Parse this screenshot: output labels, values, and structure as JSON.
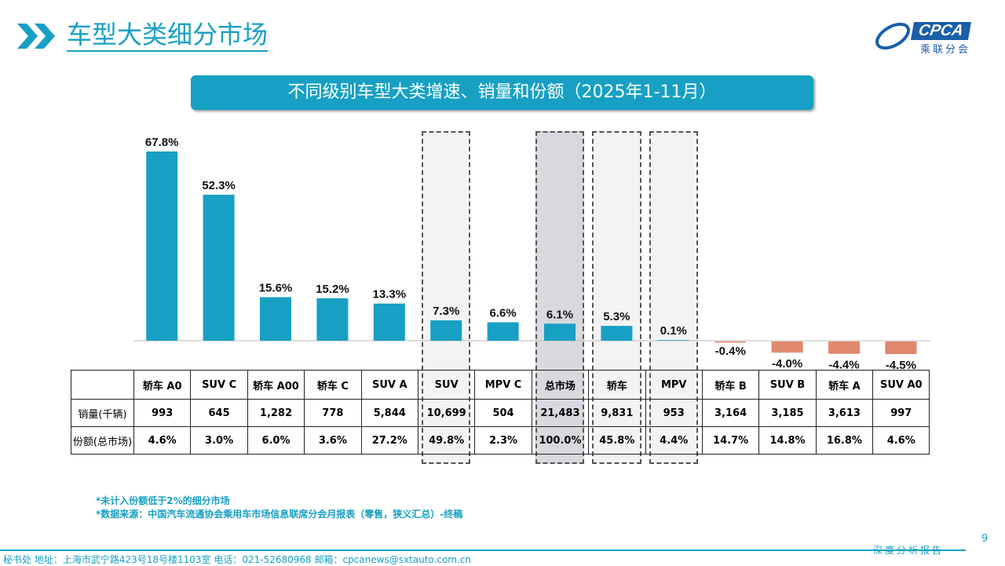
{
  "header": {
    "title": "车型大类细分市场",
    "logo_text": "CPCA",
    "logo_cn": "乘联分会"
  },
  "chart_data": {
    "type": "bar",
    "title": "不同级别车型大类增速、销量和份额（2025年1-11月）",
    "categories": [
      "轿车 A0",
      "SUV C",
      "轿车 A00",
      "轿车 C",
      "SUV A",
      "SUV",
      "MPV C",
      "总市场",
      "轿车",
      "MPV",
      "轿车 B",
      "SUV B",
      "轿车 A",
      "SUV A0"
    ],
    "values": [
      67.8,
      52.3,
      15.6,
      15.2,
      13.3,
      7.3,
      6.6,
      6.1,
      5.3,
      0.1,
      -0.4,
      -4.0,
      -4.4,
      -4.5
    ],
    "labels": [
      "67.8%",
      "52.3%",
      "15.6%",
      "15.2%",
      "13.3%",
      "7.3%",
      "6.6%",
      "6.1%",
      "5.3%",
      "0.1%",
      "-0.4%",
      "-4.0%",
      "-4.4%",
      "-4.5%"
    ],
    "unit": "%",
    "positive_color": "#17a0c4",
    "negative_color": "#e0886c",
    "highlighted": [
      "SUV",
      "总市场",
      "轿车",
      "MPV"
    ],
    "table": {
      "row_labels": [
        "销量(千辆)",
        "份额(总市场)"
      ],
      "sales": [
        "993",
        "645",
        "1,282",
        "778",
        "5,844",
        "10,699",
        "504",
        "21,483",
        "9,831",
        "953",
        "3,164",
        "3,185",
        "3,613",
        "997"
      ],
      "share": [
        "4.6%",
        "3.0%",
        "6.0%",
        "3.6%",
        "27.2%",
        "49.8%",
        "2.3%",
        "100.0%",
        "45.8%",
        "4.4%",
        "14.7%",
        "14.8%",
        "16.8%",
        "4.6%"
      ]
    }
  },
  "notes": [
    "*未计入份额低于2%的细分市场",
    "*数据来源：中国汽车流通协会乘用车市场信息联席分会月报表（零售，狭义汇总）-终稿"
  ],
  "footer": {
    "address": "秘书处   地址：上海市武宁路423号18号楼1103室  电话：021-52680968   邮箱：cpcanews@sxtauto.com.cn",
    "report": "深度分析报告",
    "page": "9"
  }
}
